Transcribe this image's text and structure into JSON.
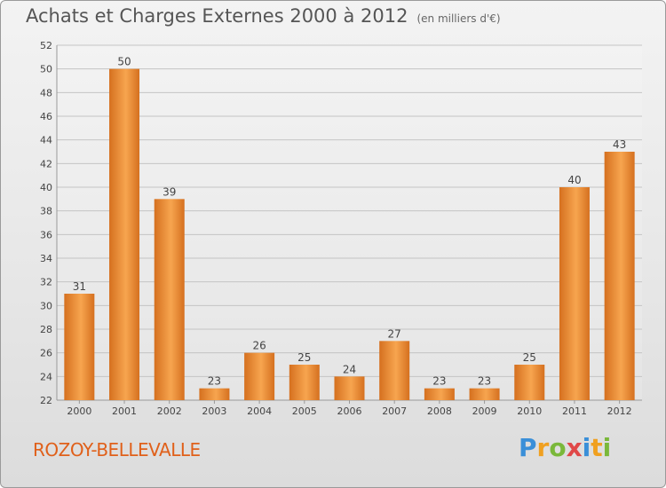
{
  "title": "Achats et Charges Externes 2000 à 2012",
  "unit": "(en milliers d'€)",
  "place": "ROZOY-BELLEVALLE",
  "brand": {
    "letters": [
      "P",
      "r",
      "o",
      "x",
      "i",
      "t",
      "i"
    ],
    "colors": [
      "#3a8fd8",
      "#f0a020",
      "#7ab83a",
      "#e04848",
      "#3a8fd8",
      "#f0a020",
      "#7ab83a"
    ]
  },
  "colors": {
    "bar_light": "#f7a54f",
    "bar_dark": "#d5701f",
    "grid": "#c4c4c4",
    "axis_text": "#444444"
  },
  "chart_data": {
    "type": "bar",
    "title": "Achats et Charges Externes 2000 à 2012",
    "xlabel": "",
    "ylabel": "",
    "categories": [
      "2000",
      "2001",
      "2002",
      "2003",
      "2004",
      "2005",
      "2006",
      "2007",
      "2008",
      "2009",
      "2010",
      "2011",
      "2012"
    ],
    "values": [
      31,
      50,
      39,
      23,
      26,
      25,
      24,
      27,
      23,
      23,
      25,
      40,
      43
    ],
    "ylim": [
      22,
      52
    ],
    "yticks": [
      22,
      24,
      26,
      28,
      30,
      32,
      34,
      36,
      38,
      40,
      42,
      44,
      46,
      48,
      50,
      52
    ],
    "grid": true
  }
}
